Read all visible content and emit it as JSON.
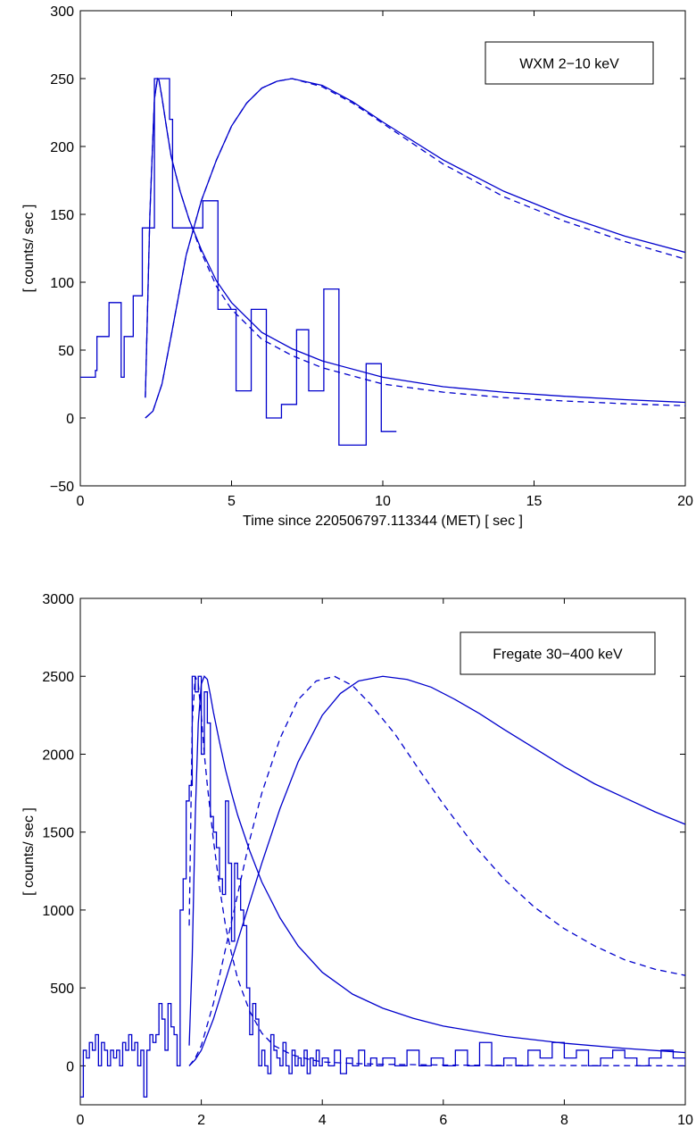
{
  "chart_data": [
    {
      "type": "line",
      "xlabel": "Time since 220506797.113344 (MET) [ sec ]",
      "ylabel": "[ counts/ sec ]",
      "xlim": [
        0,
        20
      ],
      "ylim": [
        -50,
        300
      ],
      "xticks": [
        0,
        5,
        10,
        15,
        20
      ],
      "yticks": [
        -50,
        0,
        50,
        100,
        150,
        200,
        250,
        300
      ],
      "xtick_labels": [
        "0",
        "5",
        "10",
        "15",
        "20"
      ],
      "ytick_labels": [
        "−50",
        "0",
        "50",
        "100",
        "150",
        "200",
        "250",
        "300"
      ],
      "grid": false,
      "legend": {
        "text": "WXM 2−10 keV",
        "placement": "top-right"
      },
      "series": [
        {
          "style": "step",
          "x": [
            0,
            0.5,
            0.55,
            0.95,
            1.35,
            1.45,
            1.75,
            2.05,
            2.45,
            2.65,
            2.95,
            3.05,
            3.55,
            4.05,
            4.55,
            4.95,
            5.15,
            5.65,
            6.05,
            6.15,
            6.65,
            7.15,
            7.55,
            8.05,
            8.55,
            8.95,
            9.45,
            9.95
          ],
          "y": [
            30,
            35,
            60,
            85,
            30,
            60,
            90,
            140,
            250,
            250,
            220,
            140,
            140,
            160,
            80,
            80,
            20,
            80,
            80,
            0,
            10,
            65,
            20,
            95,
            -20,
            -20,
            40,
            -10
          ]
        },
        {
          "style": "solid",
          "x": [
            2.15,
            2.3,
            2.45,
            2.55,
            2.6,
            2.7,
            2.85,
            3.0,
            3.3,
            3.6,
            4.0,
            4.5,
            5.0,
            6.0,
            7.0,
            8.0,
            10.0,
            12.0,
            14.0,
            16.0,
            18.0,
            20.0
          ],
          "y": [
            15,
            150,
            235,
            250,
            249,
            236,
            214,
            193,
            167,
            146,
            124,
            101,
            85,
            63,
            51,
            42,
            30,
            23,
            19,
            16,
            13.5,
            11.5
          ]
        },
        {
          "style": "dashed",
          "x": [
            2.15,
            2.3,
            2.45,
            2.55,
            2.6,
            2.7,
            2.85,
            3.0,
            3.3,
            3.6,
            4.0,
            4.5,
            5.0,
            6.0,
            7.0,
            8.0,
            10.0,
            12.0,
            14.0,
            16.0,
            18.0,
            20.0
          ],
          "y": [
            15,
            150,
            235,
            250,
            249,
            236,
            214,
            193,
            167,
            146,
            122,
            97,
            80,
            58,
            46,
            37,
            25,
            19,
            15,
            12.5,
            10.5,
            9
          ]
        },
        {
          "style": "solid",
          "x": [
            2.15,
            2.4,
            2.7,
            3.0,
            3.5,
            4.0,
            4.5,
            5.0,
            5.5,
            6.0,
            6.5,
            7.0,
            8.0,
            9.0,
            10.0,
            12.0,
            14.0,
            16.0,
            18.0,
            20.0
          ],
          "y": [
            0,
            5,
            25,
            60,
            120,
            160,
            190,
            215,
            232,
            243,
            248,
            250,
            245,
            233,
            218,
            190,
            167,
            149,
            134,
            122
          ]
        },
        {
          "style": "dashed",
          "x": [
            2.15,
            2.4,
            2.7,
            3.0,
            3.5,
            4.0,
            4.5,
            5.0,
            5.5,
            6.0,
            6.5,
            7.0,
            8.0,
            9.0,
            10.0,
            12.0,
            14.0,
            16.0,
            18.0,
            20.0
          ],
          "y": [
            0,
            5,
            25,
            60,
            120,
            160,
            190,
            215,
            232,
            243,
            248,
            250,
            244,
            232,
            217,
            187,
            163,
            145,
            130,
            117
          ]
        }
      ]
    },
    {
      "type": "line",
      "xlabel": "Time since 220506797.113344 (MET) [ sec ]",
      "ylabel": "[ counts/ sec ]",
      "xlim": [
        0,
        10
      ],
      "ylim": [
        -250,
        3000
      ],
      "xticks": [
        0,
        2,
        4,
        6,
        8,
        10
      ],
      "yticks": [
        0,
        500,
        1000,
        1500,
        2000,
        2500,
        3000
      ],
      "xtick_labels": [
        "0",
        "2",
        "4",
        "6",
        "8",
        "10"
      ],
      "ytick_labels": [
        "0",
        "500",
        "1000",
        "1500",
        "2000",
        "2500",
        "3000"
      ],
      "grid": false,
      "legend": {
        "text": "Fregate 30−400 keV",
        "placement": "top-right"
      },
      "series": [
        {
          "style": "step",
          "x": [
            0,
            0.05,
            0.1,
            0.15,
            0.2,
            0.25,
            0.3,
            0.35,
            0.4,
            0.45,
            0.5,
            0.55,
            0.6,
            0.65,
            0.7,
            0.75,
            0.8,
            0.85,
            0.9,
            0.95,
            1.0,
            1.05,
            1.1,
            1.15,
            1.2,
            1.25,
            1.3,
            1.35,
            1.4,
            1.45,
            1.5,
            1.55,
            1.6,
            1.65,
            1.7,
            1.75,
            1.8,
            1.85,
            1.9,
            1.95,
            2.0,
            2.05,
            2.1,
            2.15,
            2.2,
            2.25,
            2.3,
            2.35,
            2.4,
            2.45,
            2.5,
            2.55,
            2.6,
            2.65,
            2.7,
            2.75,
            2.8,
            2.85,
            2.9,
            2.95,
            3.0,
            3.05,
            3.1,
            3.15,
            3.2,
            3.25,
            3.3,
            3.35,
            3.4,
            3.45,
            3.5,
            3.55,
            3.6,
            3.65,
            3.7,
            3.75,
            3.8,
            3.85,
            3.9,
            3.95,
            4.0,
            4.1,
            4.2,
            4.3,
            4.4,
            4.5,
            4.6,
            4.7,
            4.8,
            4.9,
            5.0,
            5.2,
            5.4,
            5.6,
            5.8,
            6.0,
            6.2,
            6.4,
            6.6,
            6.8,
            7.0,
            7.2,
            7.4,
            7.6,
            7.8,
            8.0,
            8.2,
            8.4,
            8.6,
            8.8,
            9.0,
            9.2,
            9.4,
            9.6,
            9.8,
            10.0
          ],
          "y": [
            -200,
            100,
            50,
            150,
            100,
            200,
            0,
            150,
            100,
            0,
            100,
            50,
            100,
            0,
            150,
            100,
            200,
            100,
            150,
            0,
            100,
            -200,
            100,
            200,
            150,
            200,
            400,
            300,
            100,
            400,
            250,
            200,
            0,
            1000,
            1200,
            1700,
            1800,
            2500,
            2400,
            2500,
            2000,
            2400,
            2200,
            1600,
            1500,
            1400,
            1200,
            1100,
            1700,
            1300,
            800,
            1300,
            1200,
            1000,
            900,
            500,
            200,
            400,
            300,
            0,
            100,
            0,
            -50,
            200,
            100,
            50,
            0,
            150,
            0,
            -50,
            100,
            0,
            50,
            0,
            100,
            -50,
            50,
            0,
            100,
            0,
            50,
            0,
            100,
            -50,
            50,
            0,
            100,
            0,
            50,
            0,
            50,
            0,
            100,
            0,
            50,
            0,
            100,
            0,
            150,
            0,
            50,
            0,
            100,
            50,
            150,
            50,
            100,
            0,
            50,
            100,
            50,
            0,
            50,
            100,
            50,
            0
          ]
        },
        {
          "style": "solid",
          "x": [
            1.8,
            1.85,
            1.9,
            1.95,
            2.0,
            2.05,
            2.1,
            2.15,
            2.2,
            2.3,
            2.4,
            2.5,
            2.6,
            2.8,
            3.0,
            3.3,
            3.6,
            4.0,
            4.5,
            5.0,
            5.5,
            6.0,
            7.0,
            8.0,
            9.0,
            10.0
          ],
          "y": [
            130,
            700,
            1600,
            2200,
            2450,
            2500,
            2480,
            2380,
            2270,
            2080,
            1900,
            1750,
            1610,
            1380,
            1180,
            950,
            770,
            600,
            460,
            370,
            305,
            255,
            190,
            145,
            112,
            85
          ]
        },
        {
          "style": "dashed",
          "x": [
            1.8,
            1.85,
            1.9,
            1.95,
            2.0,
            2.05,
            2.1,
            2.2,
            2.3,
            2.4,
            2.5,
            2.6,
            2.8,
            3.0,
            3.2,
            3.5,
            3.8,
            4.0,
            4.5,
            5.0,
            6.0,
            7.0,
            8.0,
            9.0,
            10.0
          ],
          "y": [
            900,
            2200,
            2500,
            2450,
            2250,
            2000,
            1800,
            1450,
            1150,
            900,
            720,
            560,
            350,
            210,
            130,
            70,
            40,
            25,
            15,
            10,
            5,
            3,
            2,
            1,
            0
          ]
        },
        {
          "style": "solid",
          "x": [
            1.8,
            1.9,
            2.0,
            2.2,
            2.4,
            2.6,
            2.8,
            3.0,
            3.3,
            3.6,
            4.0,
            4.3,
            4.6,
            5.0,
            5.4,
            5.8,
            6.2,
            6.6,
            7.0,
            7.5,
            8.0,
            8.5,
            9.0,
            9.5,
            10.0
          ],
          "y": [
            0,
            40,
            100,
            300,
            550,
            800,
            1050,
            1300,
            1650,
            1950,
            2250,
            2390,
            2470,
            2500,
            2480,
            2430,
            2350,
            2260,
            2160,
            2040,
            1920,
            1810,
            1720,
            1630,
            1550
          ]
        },
        {
          "style": "dashed",
          "x": [
            1.8,
            1.9,
            2.0,
            2.2,
            2.4,
            2.6,
            2.8,
            3.0,
            3.3,
            3.6,
            3.9,
            4.2,
            4.5,
            4.8,
            5.2,
            5.6,
            6.0,
            6.5,
            7.0,
            7.5,
            8.0,
            8.5,
            9.0,
            9.5,
            10.0
          ],
          "y": [
            0,
            50,
            130,
            400,
            750,
            1100,
            1450,
            1750,
            2100,
            2350,
            2470,
            2500,
            2440,
            2320,
            2130,
            1900,
            1680,
            1420,
            1200,
            1020,
            880,
            770,
            680,
            620,
            580
          ]
        }
      ]
    }
  ]
}
